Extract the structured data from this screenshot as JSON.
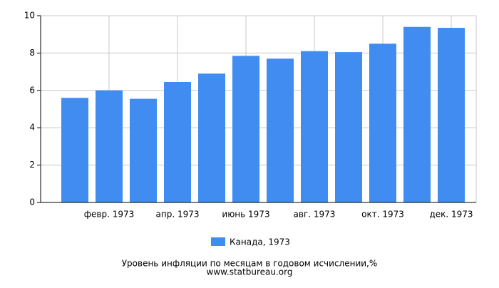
{
  "chart_data": {
    "type": "bar",
    "title": "Уровень инфляции по месяцам в годовом исчислении,%",
    "source": "www.statbureau.org",
    "categories": [
      null,
      "февр. 1973",
      null,
      "апр. 1973",
      null,
      "июнь 1973",
      null,
      "авг. 1973",
      null,
      "окт. 1973",
      null,
      "дек. 1973"
    ],
    "series": [
      {
        "name": "Канада, 1973",
        "color": "#418cf0",
        "values": [
          5.6,
          6.0,
          5.55,
          6.45,
          6.9,
          7.85,
          7.7,
          8.1,
          8.05,
          8.5,
          9.4,
          9.35
        ]
      }
    ],
    "ylim": [
      0,
      10
    ],
    "yticks": [
      0,
      2,
      4,
      6,
      8,
      10
    ],
    "grid": true
  }
}
